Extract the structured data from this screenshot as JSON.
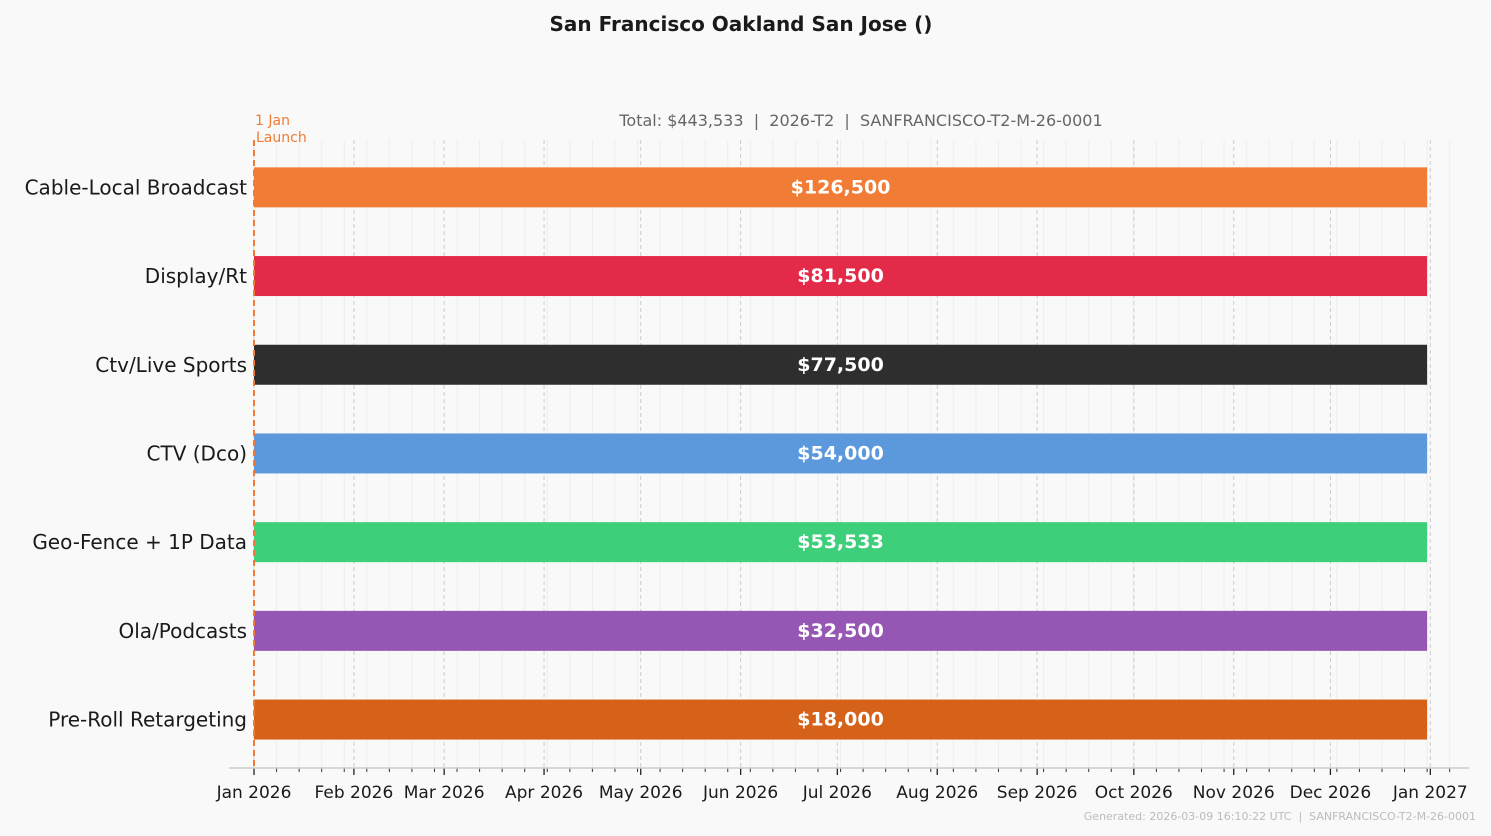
{
  "colors": {
    "background": "#f9f9f9",
    "launch_marker": "#f07c35",
    "grid": "#cccccc",
    "minor_grid": "#eeeeee",
    "text": "#1a1a1a",
    "subtitle": "#666666",
    "footer": "#bbbbbb"
  },
  "chart_data": {
    "type": "bar",
    "orientation": "horizontal",
    "layout": "gantt",
    "title": "San Francisco Oakland San Jose ()",
    "subtitle": "Total: $443,533  |  2026-T2  |  SANFRANCISCO-T2-M-26-0001",
    "footer": "Generated: 2026-03-09 16:10:22 UTC  |  SANFRANCISCO-T2-M-26-0001",
    "xlim": [
      "2026-01-01",
      "2027-01-13"
    ],
    "x_ticks": [
      {
        "date": "2026-01-01",
        "label": "Jan 2026"
      },
      {
        "date": "2026-02-01",
        "label": "Feb 2026"
      },
      {
        "date": "2026-03-01",
        "label": "Mar 2026"
      },
      {
        "date": "2026-04-01",
        "label": "Apr 2026"
      },
      {
        "date": "2026-05-01",
        "label": "May 2026"
      },
      {
        "date": "2026-06-01",
        "label": "Jun 2026"
      },
      {
        "date": "2026-07-01",
        "label": "Jul 2026"
      },
      {
        "date": "2026-08-01",
        "label": "Aug 2026"
      },
      {
        "date": "2026-09-01",
        "label": "Sep 2026"
      },
      {
        "date": "2026-10-01",
        "label": "Oct 2026"
      },
      {
        "date": "2026-11-01",
        "label": "Nov 2026"
      },
      {
        "date": "2026-12-01",
        "label": "Dec 2026"
      },
      {
        "date": "2027-01-01",
        "label": "Jan 2027"
      }
    ],
    "grid": true,
    "annotation": {
      "date": "2026-01-01",
      "line1": "1 Jan",
      "line2": "Launch"
    },
    "series": [
      {
        "name": "Cable-Local Broadcast",
        "start": "2026-01-01",
        "end": "2026-12-31",
        "value": 126500,
        "value_label": "$126,500",
        "color": "#f07c35"
      },
      {
        "name": "Display/Rt",
        "start": "2026-01-01",
        "end": "2026-12-31",
        "value": 81500,
        "value_label": "$81,500",
        "color": "#e32a48"
      },
      {
        "name": "Ctv/Live Sports",
        "start": "2026-01-01",
        "end": "2026-12-31",
        "value": 77500,
        "value_label": "$77,500",
        "color": "#2e2e2e"
      },
      {
        "name": "CTV (Dco)",
        "start": "2026-01-01",
        "end": "2026-12-31",
        "value": 54000,
        "value_label": "$54,000",
        "color": "#5b98dc"
      },
      {
        "name": "Geo-Fence + 1P Data",
        "start": "2026-01-01",
        "end": "2026-12-31",
        "value": 53533,
        "value_label": "$53,533",
        "color": "#3ecf7b"
      },
      {
        "name": "Ola/Podcasts",
        "start": "2026-01-01",
        "end": "2026-12-31",
        "value": 32500,
        "value_label": "$32,500",
        "color": "#9656b3"
      },
      {
        "name": "Pre-Roll Retargeting",
        "start": "2026-01-01",
        "end": "2026-12-31",
        "value": 18000,
        "value_label": "$18,000",
        "color": "#d66119"
      }
    ]
  }
}
